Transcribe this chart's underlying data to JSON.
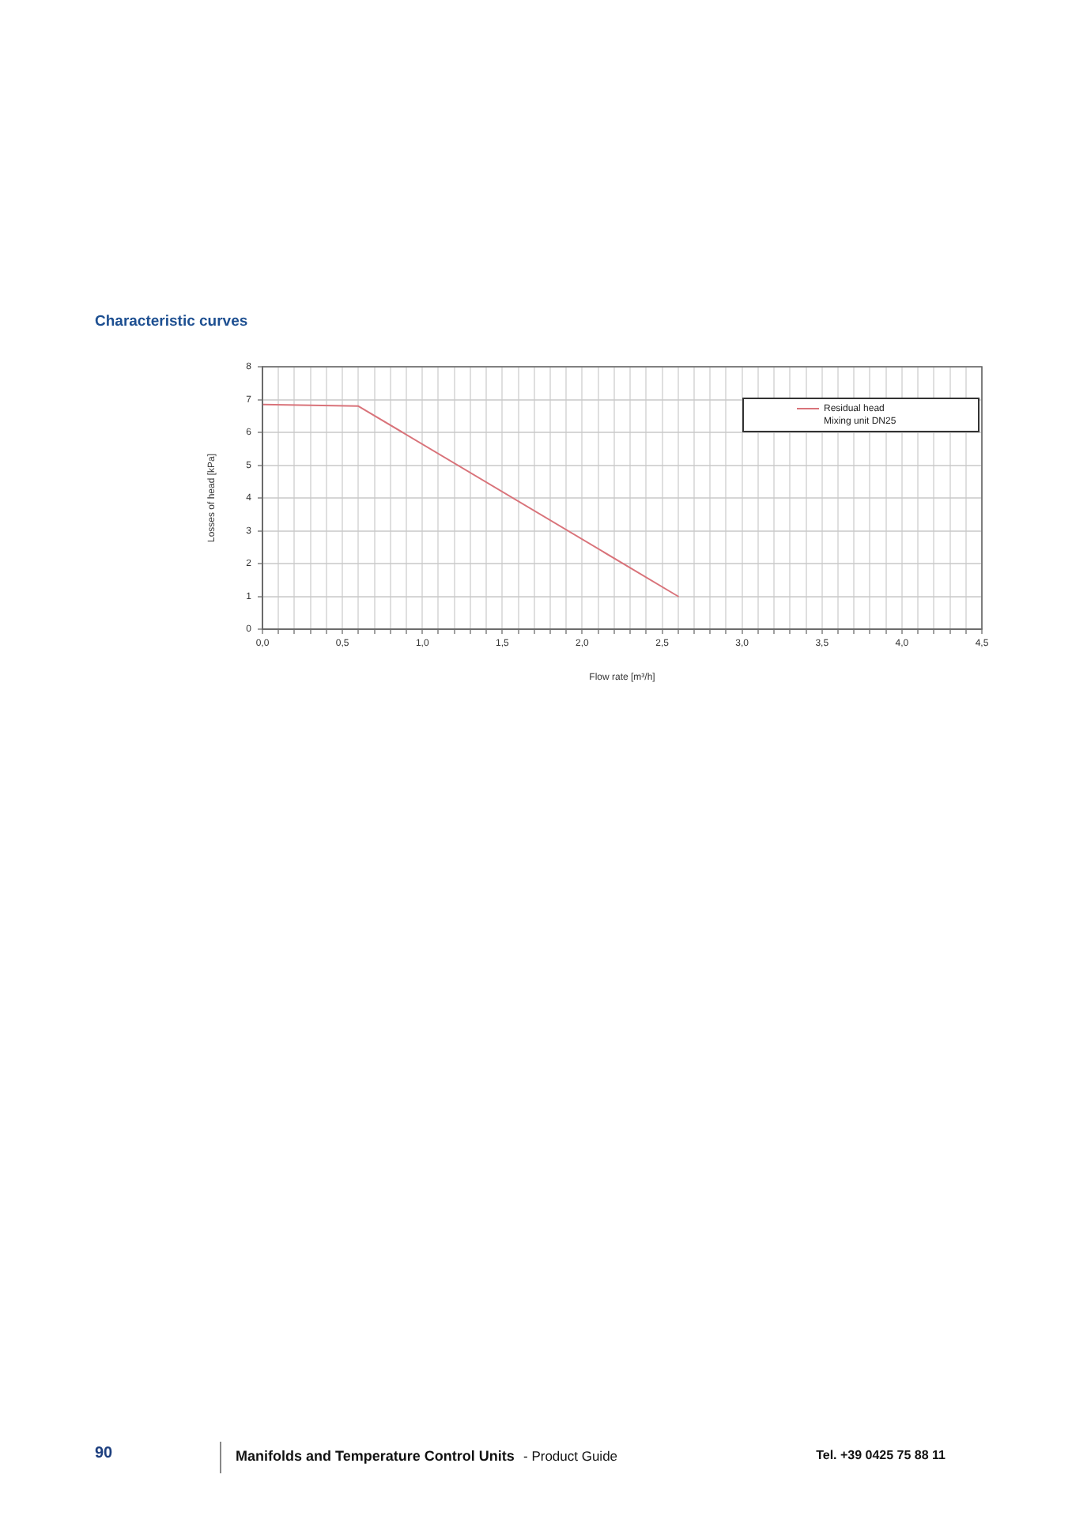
{
  "chart_data": {
    "type": "line",
    "title": "Characteristic curves",
    "xlabel": "Flow rate [m³/h]",
    "ylabel": "Losses of head [kPa]",
    "x": [
      0,
      0.6,
      2.6
    ],
    "series": [
      {
        "name": "Residual head Mixing unit DN25",
        "color": "#d9737a",
        "values": [
          6.85,
          6.8,
          1.0
        ]
      }
    ],
    "xlim": [
      0,
      4.5
    ],
    "xticks": [
      {
        "value": 0,
        "label": "0,0"
      },
      {
        "value": 0.1,
        "label": null
      },
      {
        "value": 0.2,
        "label": null
      },
      {
        "value": 0.3,
        "label": null
      },
      {
        "value": 0.4,
        "label": null
      },
      {
        "value": 0.5,
        "label": "0,5"
      },
      {
        "value": 0.6,
        "label": null
      },
      {
        "value": 0.7,
        "label": null
      },
      {
        "value": 0.8,
        "label": null
      },
      {
        "value": 0.9,
        "label": null
      },
      {
        "value": 1.0,
        "label": "1,0"
      },
      {
        "value": 1.1,
        "label": null
      },
      {
        "value": 1.2,
        "label": null
      },
      {
        "value": 1.3,
        "label": null
      },
      {
        "value": 1.4,
        "label": null
      },
      {
        "value": 1.5,
        "label": "1,5"
      },
      {
        "value": 1.6,
        "label": null
      },
      {
        "value": 1.7,
        "label": null
      },
      {
        "value": 1.8,
        "label": null
      },
      {
        "value": 1.9,
        "label": null
      },
      {
        "value": 2.0,
        "label": "2,0"
      },
      {
        "value": 2.1,
        "label": null
      },
      {
        "value": 2.2,
        "label": null
      },
      {
        "value": 2.3,
        "label": null
      },
      {
        "value": 2.4,
        "label": null
      },
      {
        "value": 2.5,
        "label": "2,5"
      },
      {
        "value": 2.6,
        "label": null
      },
      {
        "value": 2.7,
        "label": null
      },
      {
        "value": 2.8,
        "label": null
      },
      {
        "value": 2.9,
        "label": null
      },
      {
        "value": 3.0,
        "label": "3,0"
      },
      {
        "value": 3.1,
        "label": null
      },
      {
        "value": 3.2,
        "label": null
      },
      {
        "value": 3.3,
        "label": null
      },
      {
        "value": 3.4,
        "label": null
      },
      {
        "value": 3.5,
        "label": "3,5"
      },
      {
        "value": 3.6,
        "label": null
      },
      {
        "value": 3.7,
        "label": null
      },
      {
        "value": 3.8,
        "label": null
      },
      {
        "value": 3.9,
        "label": null
      },
      {
        "value": 4.0,
        "label": "4,0"
      },
      {
        "value": 4.1,
        "label": null
      },
      {
        "value": 4.2,
        "label": null
      },
      {
        "value": 4.3,
        "label": null
      },
      {
        "value": 4.4,
        "label": null
      },
      {
        "value": 4.5,
        "label": "4,5"
      }
    ],
    "ylim": [
      0,
      8
    ],
    "yticks": [
      0,
      1,
      2,
      3,
      4,
      5,
      6,
      7,
      8
    ],
    "grid": true,
    "legend": "top right",
    "line_style": "solid",
    "annotations": [
      "90",
      "Manifolds and Temperature Control Units",
      "- Product Guide",
      "Tel. +39 0425 75 88 11"
    ]
  }
}
